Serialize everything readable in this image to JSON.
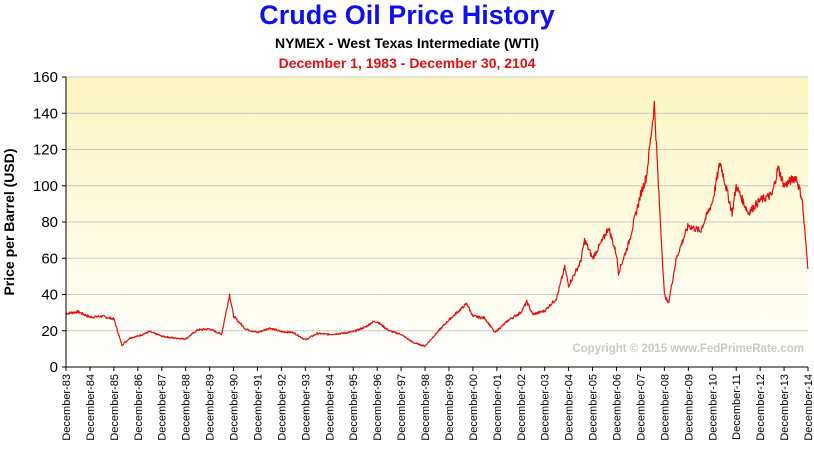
{
  "chart_data": {
    "type": "line",
    "title": "Crude Oil Price History",
    "subtitle": "NYMEX - West Texas Intermediate  (WTI)",
    "date_range": "December 1, 1983  -  December 30, 2104",
    "ylabel": "Price per Barrel (USD)",
    "xlabel": "",
    "ylim": [
      0,
      160
    ],
    "yticks": [
      0,
      20,
      40,
      60,
      80,
      100,
      120,
      140,
      160
    ],
    "grid": true,
    "legend": "none",
    "watermark": "Copyright © 2015 www.FedPrimeRate.com",
    "line_color": "#e01010",
    "plot_bg_top": "#fcf6c0",
    "plot_bg_bottom": "#ffffff",
    "xtick_labels": [
      "December-83",
      "December-84",
      "December-85",
      "December-86",
      "December-87",
      "December-88",
      "December-89",
      "December-90",
      "December-91",
      "December-92",
      "December-93",
      "December-94",
      "December-95",
      "December-96",
      "December-97",
      "December-98",
      "December-99",
      "December-00",
      "December-01",
      "December-02",
      "December-03",
      "December-04",
      "December-05",
      "December-06",
      "December-07",
      "December-08",
      "December-09",
      "December-10",
      "December-11",
      "December-12",
      "December-13",
      "December-14"
    ],
    "series": [
      {
        "x": [
          "1983-12",
          "1984-06",
          "1984-12",
          "1985-06",
          "1985-12",
          "1986-04",
          "1986-08",
          "1986-12",
          "1987-06",
          "1987-12",
          "1988-06",
          "1988-12",
          "1989-06",
          "1989-12",
          "1990-06",
          "1990-10",
          "1990-12",
          "1991-06",
          "1991-12",
          "1992-06",
          "1992-12",
          "1993-06",
          "1993-12",
          "1994-06",
          "1994-12",
          "1995-06",
          "1995-12",
          "1996-06",
          "1996-10",
          "1996-12",
          "1997-06",
          "1997-12",
          "1998-06",
          "1998-12",
          "1999-06",
          "1999-12",
          "2000-06",
          "2000-09",
          "2000-12",
          "2001-06",
          "2001-11",
          "2002-06",
          "2002-12",
          "2003-03",
          "2003-06",
          "2003-12",
          "2004-06",
          "2004-10",
          "2004-12",
          "2005-06",
          "2005-08",
          "2005-12",
          "2006-06",
          "2006-08",
          "2006-12",
          "2007-01",
          "2007-06",
          "2007-12",
          "2008-03",
          "2008-07",
          "2008-09",
          "2008-12",
          "2009-02",
          "2009-06",
          "2009-12",
          "2010-06",
          "2010-12",
          "2011-04",
          "2011-10",
          "2011-12",
          "2012-06",
          "2012-12",
          "2013-06",
          "2013-09",
          "2013-12",
          "2014-06",
          "2014-09",
          "2014-12"
        ],
        "y": [
          29.5,
          30.5,
          27.5,
          28,
          26.5,
          12,
          16,
          17,
          19.5,
          17,
          16,
          15.5,
          20.5,
          21,
          18,
          40,
          28,
          21,
          19,
          21.5,
          19.5,
          19,
          15,
          18.5,
          18,
          18.5,
          19.5,
          22,
          25,
          25,
          20,
          18,
          13.5,
          11.5,
          19,
          26,
          32,
          35,
          28,
          27,
          19,
          26,
          30,
          36,
          29,
          31,
          38,
          55,
          45,
          58,
          70,
          60,
          72,
          77,
          62,
          52,
          68,
          95,
          105,
          145,
          100,
          40,
          35,
          60,
          78,
          75,
          91,
          113,
          85,
          100,
          85,
          92,
          95,
          110,
          100,
          105,
          93,
          54
        ]
      }
    ]
  }
}
